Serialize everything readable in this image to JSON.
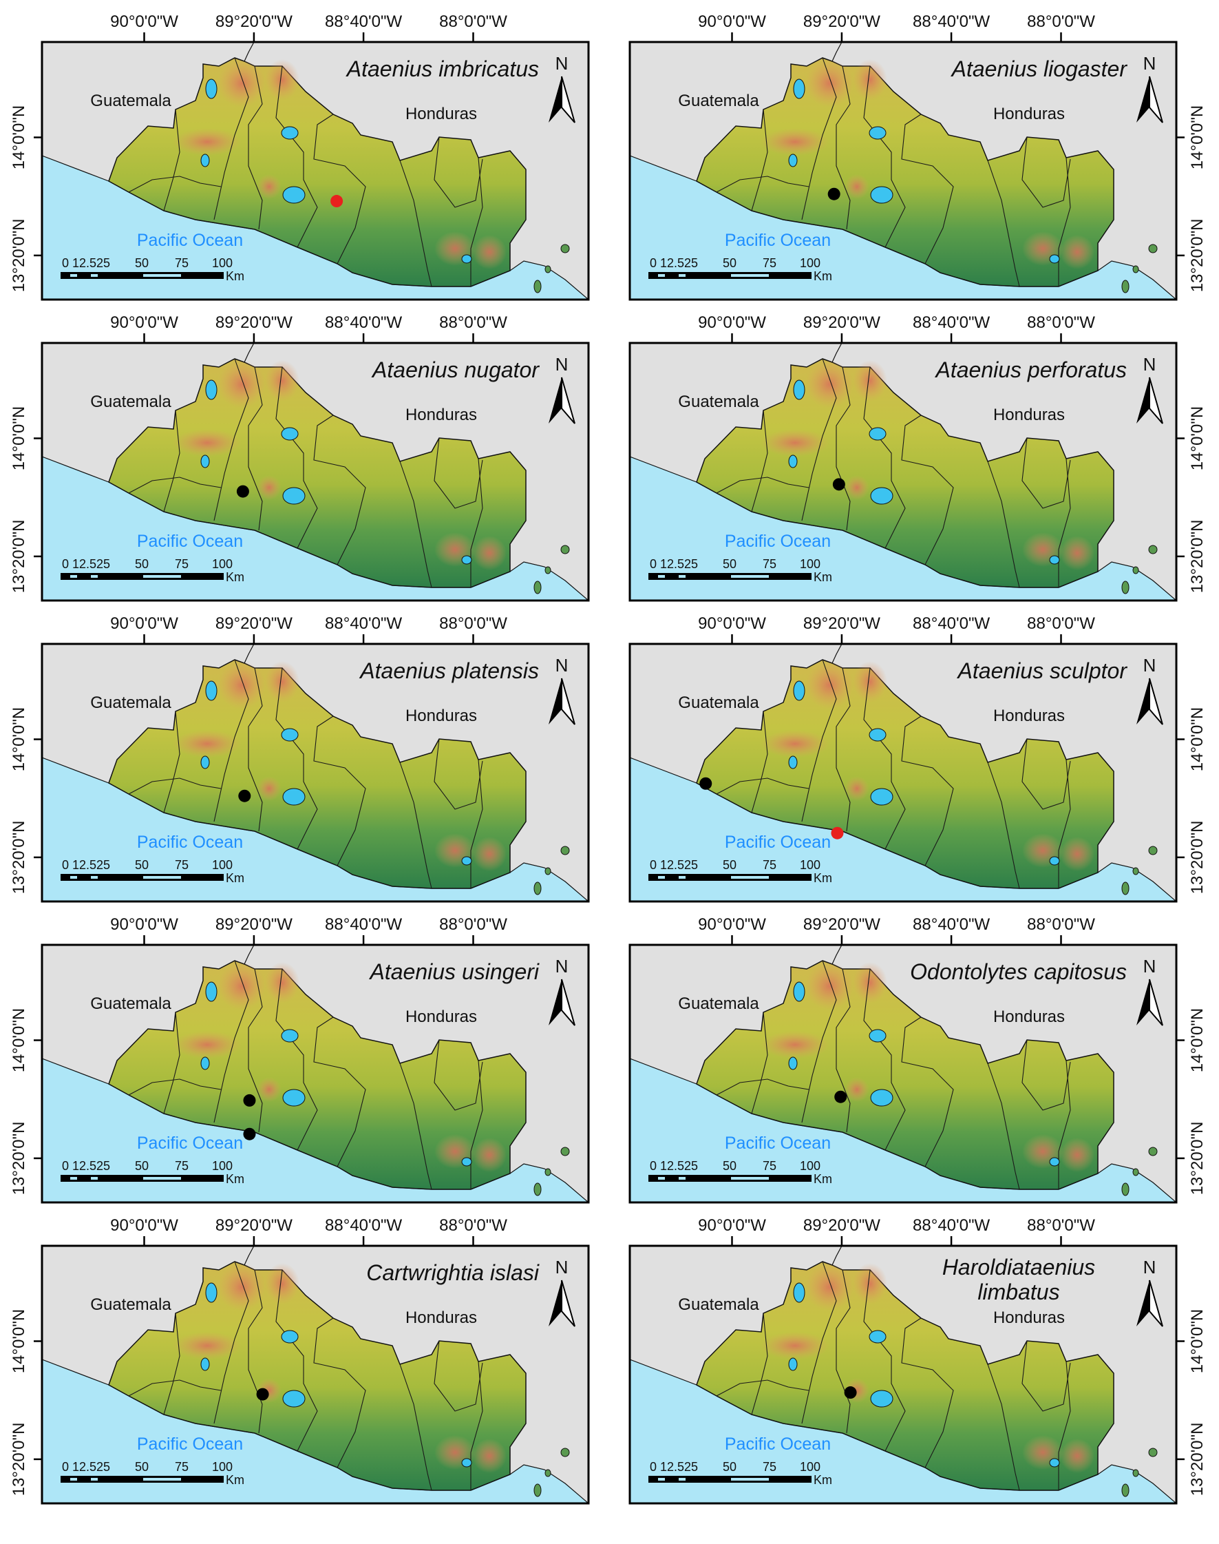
{
  "figure": {
    "lon_ticks": [
      {
        "label": "90°0'0\"W",
        "value": -90
      },
      {
        "label": "89°20'0\"W",
        "value": -89.333
      },
      {
        "label": "88°40'0\"W",
        "value": -88.667
      },
      {
        "label": "88°0'0\"W",
        "value": -88
      }
    ],
    "lat_ticks": [
      {
        "label": "14°0'0\"N",
        "value": 14
      },
      {
        "label": "13°20'0\"N",
        "value": 13.333
      }
    ],
    "labels": {
      "guatemala": "Guatemala",
      "honduras": "Honduras",
      "ocean": "Pacific Ocean",
      "north": "N"
    },
    "scale_bar": {
      "ticks": [
        "0 12.525",
        "50",
        "75",
        "100"
      ],
      "unit": "Km"
    },
    "colors": {
      "background": "#e0e0e0",
      "ocean": "#aee6f7",
      "lake": "#3cc3f0",
      "ocean_label": "#1f8fff",
      "record_black": "#000000",
      "record_red": "#e8201e"
    },
    "panels": [
      {
        "title": [
          "Ataenius imbricatus"
        ],
        "records": [
          {
            "lon": -88.83,
            "lat": 13.64,
            "color": "red"
          }
        ]
      },
      {
        "title": [
          "Ataenius liogaster"
        ],
        "records": [
          {
            "lon": -89.38,
            "lat": 13.68,
            "color": "black"
          }
        ]
      },
      {
        "title": [
          "Ataenius nugator"
        ],
        "records": [
          {
            "lon": -89.4,
            "lat": 13.7,
            "color": "black"
          }
        ]
      },
      {
        "title": [
          "Ataenius perforatus"
        ],
        "records": [
          {
            "lon": -89.35,
            "lat": 13.74,
            "color": "black"
          }
        ]
      },
      {
        "title": [
          "Ataenius platensis"
        ],
        "records": [
          {
            "lon": -89.39,
            "lat": 13.68,
            "color": "black"
          }
        ]
      },
      {
        "title": [
          "Ataenius sculptor"
        ],
        "records": [
          {
            "lon": -90.16,
            "lat": 13.75,
            "color": "black"
          },
          {
            "lon": -89.36,
            "lat": 13.47,
            "color": "red"
          }
        ]
      },
      {
        "title": [
          "Ataenius usingeri"
        ],
        "records": [
          {
            "lon": -89.36,
            "lat": 13.66,
            "color": "black"
          },
          {
            "lon": -89.36,
            "lat": 13.47,
            "color": "black"
          }
        ]
      },
      {
        "title": [
          "Odontolytes capitosus"
        ],
        "records": [
          {
            "lon": -89.34,
            "lat": 13.68,
            "color": "black"
          }
        ]
      },
      {
        "title": [
          "Cartwrightia islasi"
        ],
        "records": [
          {
            "lon": -89.28,
            "lat": 13.7,
            "color": "black"
          }
        ]
      },
      {
        "title": [
          "Haroldiataenius",
          "limbatus"
        ],
        "records": [
          {
            "lon": -89.28,
            "lat": 13.71,
            "color": "black"
          }
        ]
      }
    ]
  }
}
